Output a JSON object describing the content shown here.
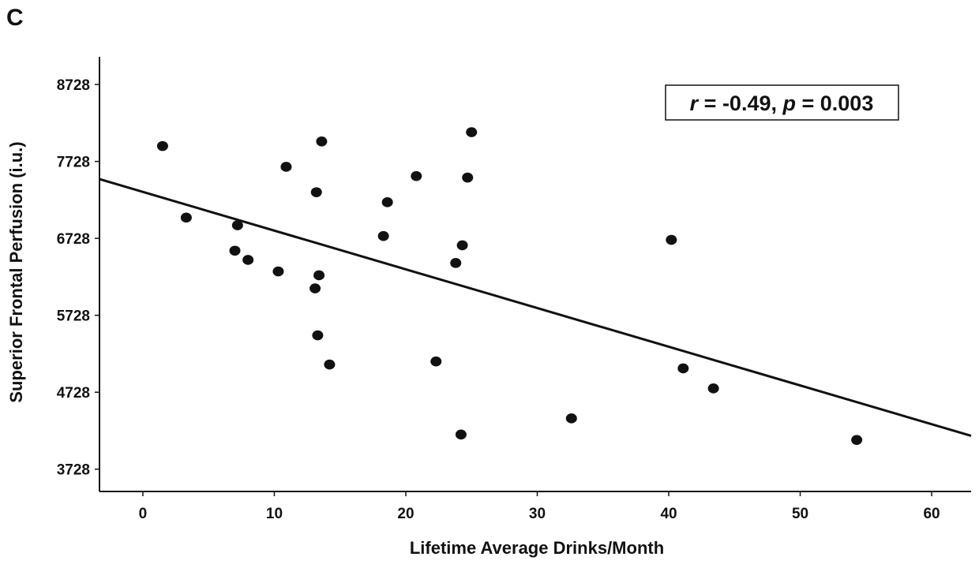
{
  "panel_label": "C",
  "colors": {
    "ink": "#111111",
    "background": "#ffffff"
  },
  "chart_data": {
    "type": "scatter",
    "title": "",
    "xlabel": "Lifetime Average Drinks/Month",
    "ylabel": "Superior Frontal Perfusion (i.u.)",
    "xlim": [
      -3.3,
      63
    ],
    "ylim": [
      3438,
      9088
    ],
    "x_ticks": [
      0,
      10,
      20,
      30,
      40,
      50,
      60
    ],
    "x_tick_labels": [
      "0",
      "10",
      "20",
      "30",
      "40",
      "50",
      "60"
    ],
    "y_ticks": [
      3728,
      4728,
      5728,
      6728,
      7728,
      8728
    ],
    "y_tick_labels": [
      "3728",
      "4728",
      "5728",
      "6728",
      "7728",
      "8728"
    ],
    "grid": false,
    "annotation": {
      "r_symbol": "r",
      "r_text": " = -0.49, ",
      "p_symbol": "p",
      "p_text": " = 0.003",
      "position": "top-right"
    },
    "fit_line": {
      "x": [
        -3.3,
        63
      ],
      "y": [
        7498,
        4162
      ]
    },
    "series": [
      {
        "name": "Participants",
        "x": [
          1.5,
          3.3,
          7.0,
          7.2,
          8.0,
          10.3,
          10.9,
          13.1,
          13.2,
          13.3,
          13.4,
          13.6,
          14.2,
          18.3,
          18.6,
          20.8,
          22.3,
          23.8,
          24.2,
          24.3,
          24.7,
          25.0,
          32.6,
          40.2,
          41.1,
          43.4,
          54.3
        ],
        "y": [
          7928,
          6998,
          6568,
          6898,
          6448,
          6298,
          7658,
          6078,
          7328,
          5468,
          6248,
          7988,
          5088,
          6758,
          7198,
          7538,
          5128,
          6408,
          4178,
          6638,
          7518,
          8108,
          4388,
          6708,
          5038,
          4778,
          4108
        ]
      }
    ]
  }
}
